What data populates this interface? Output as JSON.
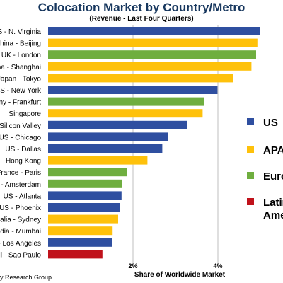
{
  "colors": {
    "US": "#2f4fa0",
    "APAC": "#fec10b",
    "Europe": "#6fae3f",
    "Latin America": "#c0121b",
    "title": "#17375e"
  },
  "chart_data": {
    "type": "bar",
    "orientation": "horizontal",
    "title": "Colocation Market by Country/Metro",
    "subtitle": "(Revenue - Last Four Quarters)",
    "xlabel": "Share of Worldwide Market",
    "ylabel": "",
    "xlim": [
      0,
      5
    ],
    "xticks": [
      {
        "value": 2,
        "label": "2%"
      },
      {
        "value": 4,
        "label": "4%"
      }
    ],
    "grid": true,
    "legend_position": "right",
    "source_text": "y Research Group",
    "categories": [
      "US - N. Virginia",
      "China - Beijing",
      "UK - London",
      "China - Shanghai",
      "Japan - Tokyo",
      "US - New York",
      "Germany - Frankfurt",
      "Singapore",
      "US - Silicon Valley",
      "US - Chicago",
      "US - Dallas",
      "Hong Kong",
      "France - Paris",
      "Netherlands - Amsterdam",
      "US - Atlanta",
      "US - Phoenix",
      "Australia - Sydney",
      "India - Mumbai",
      "US - Los Angeles",
      "Brazil - Sao Paulo"
    ],
    "values": [
      5.0,
      4.93,
      4.9,
      4.79,
      4.35,
      3.99,
      3.68,
      3.64,
      3.27,
      2.82,
      2.69,
      2.34,
      1.85,
      1.75,
      1.73,
      1.7,
      1.65,
      1.52,
      1.51,
      1.28
    ],
    "regions": [
      "US",
      "APAC",
      "Europe",
      "APAC",
      "APAC",
      "US",
      "Europe",
      "APAC",
      "US",
      "US",
      "US",
      "APAC",
      "Europe",
      "Europe",
      "US",
      "US",
      "APAC",
      "APAC",
      "US",
      "Latin America"
    ],
    "legend": [
      {
        "key": "US",
        "label": "US"
      },
      {
        "key": "APAC",
        "label": "APAC"
      },
      {
        "key": "Europe",
        "label": "Europe"
      },
      {
        "key": "Latin America",
        "label": "Latin America"
      }
    ]
  }
}
